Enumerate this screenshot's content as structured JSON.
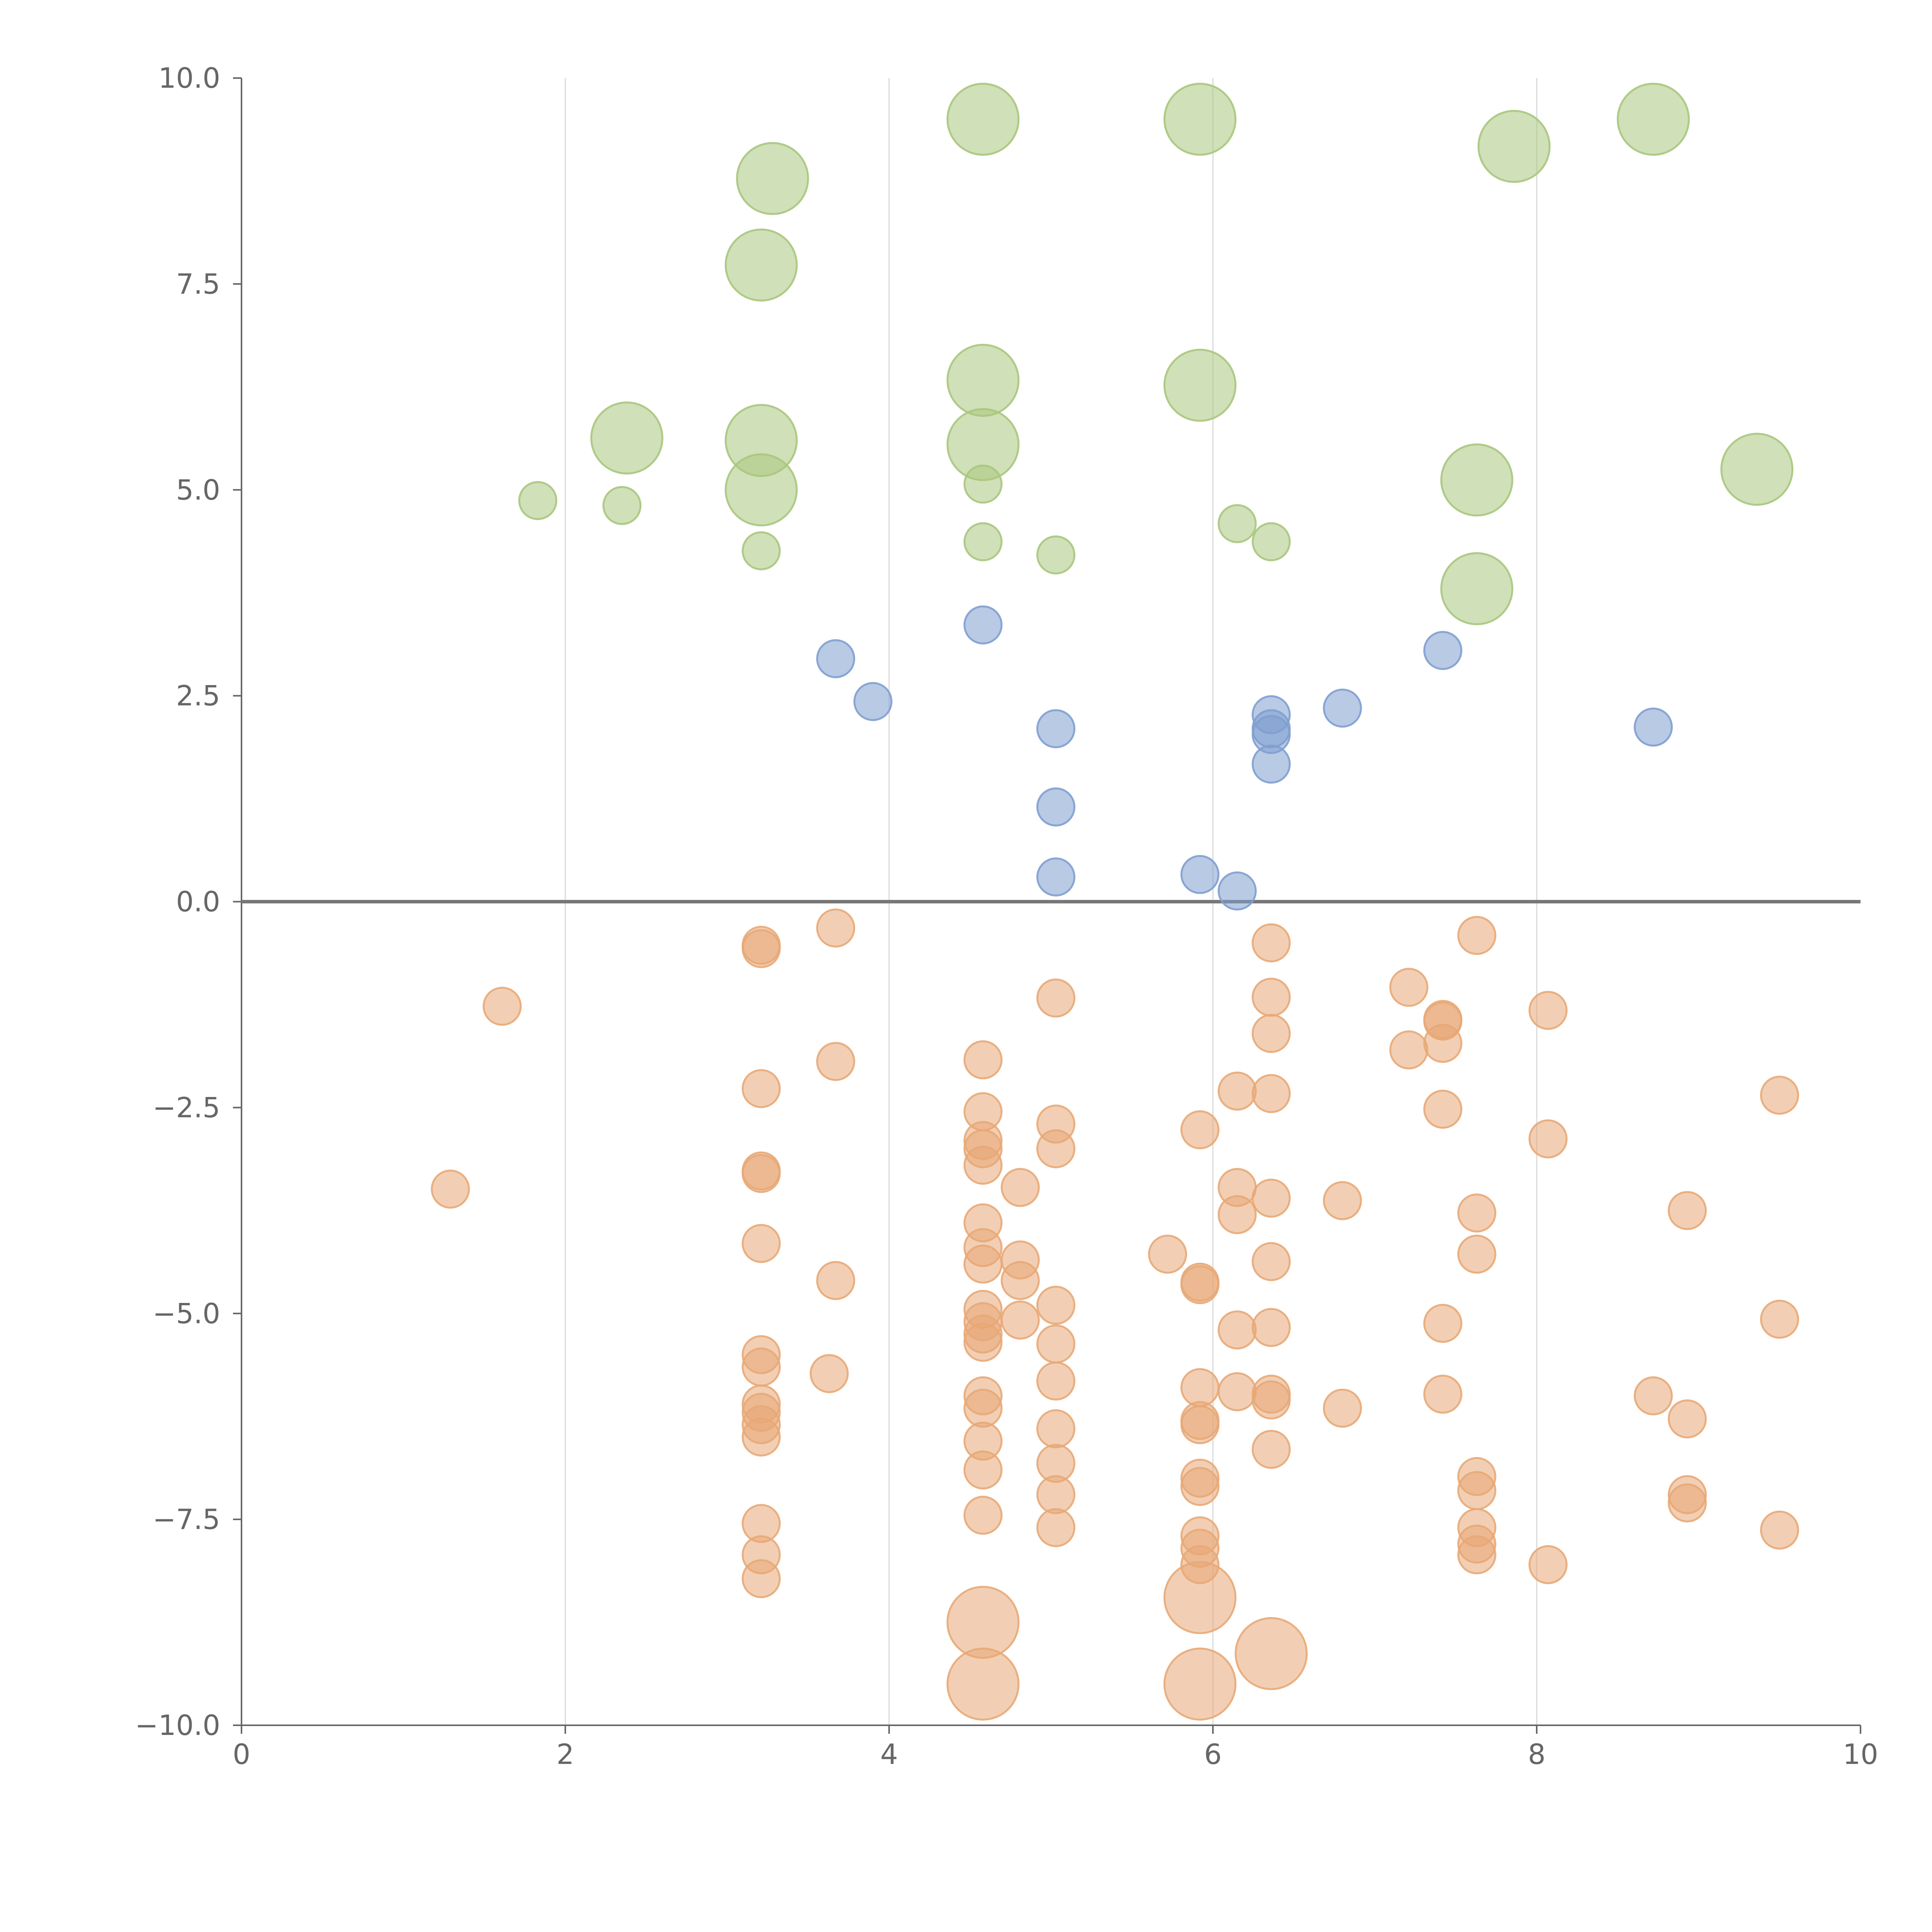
{
  "chart_data": {
    "type": "scatter",
    "title": "",
    "xlabel": "",
    "ylabel": "",
    "xlim": [
      0,
      10
    ],
    "ylim": [
      -10,
      10
    ],
    "x_ticks": [
      "0",
      "2",
      "4",
      "6",
      "8",
      "10"
    ],
    "y_ticks": [
      "10.0",
      "7.5",
      "5.0",
      "2.5",
      "0.0",
      "−2.5",
      "−5.0",
      "−7.5",
      "−10.0"
    ],
    "grid": "vertical",
    "zero_line": true,
    "series": [
      {
        "color": "#a9c77e",
        "points": [
          [
            4.58,
            9.5,
            2
          ],
          [
            5.92,
            9.5,
            2
          ],
          [
            8.72,
            9.5,
            2
          ],
          [
            7.86,
            9.17,
            2
          ],
          [
            3.28,
            8.78,
            2
          ],
          [
            3.21,
            7.73,
            2
          ],
          [
            4.58,
            6.33,
            2
          ],
          [
            5.92,
            6.27,
            2
          ],
          [
            2.38,
            5.63,
            2
          ],
          [
            3.21,
            5.6,
            2
          ],
          [
            4.58,
            5.55,
            2
          ],
          [
            9.36,
            5.25,
            2
          ],
          [
            7.63,
            5.12,
            2
          ],
          [
            3.21,
            5.0,
            2
          ],
          [
            7.63,
            3.8,
            2
          ],
          [
            1.83,
            4.87,
            1
          ],
          [
            2.35,
            4.81,
            1
          ],
          [
            4.58,
            5.07,
            1
          ],
          [
            6.15,
            4.59,
            1
          ],
          [
            6.36,
            4.37,
            1
          ],
          [
            4.58,
            4.37,
            1
          ],
          [
            5.03,
            4.21,
            1
          ],
          [
            3.21,
            4.26,
            1
          ]
        ]
      },
      {
        "color": "#7f9fd0",
        "points": [
          [
            3.67,
            2.95,
            1
          ],
          [
            3.9,
            2.43,
            1
          ],
          [
            4.58,
            3.36,
            1
          ],
          [
            5.03,
            2.1,
            1
          ],
          [
            5.03,
            1.15,
            1
          ],
          [
            5.03,
            0.3,
            1
          ],
          [
            5.92,
            0.33,
            1
          ],
          [
            6.15,
            0.13,
            1
          ],
          [
            6.36,
            2.27,
            1
          ],
          [
            6.36,
            2.1,
            1
          ],
          [
            6.36,
            2.03,
            1
          ],
          [
            6.36,
            1.67,
            1
          ],
          [
            6.8,
            2.35,
            1
          ],
          [
            7.42,
            3.05,
            1
          ],
          [
            8.72,
            2.12,
            1
          ]
        ]
      },
      {
        "color": "#e8a877",
        "points": [
          [
            1.29,
            -3.49,
            1
          ],
          [
            1.61,
            -1.27,
            1
          ],
          [
            3.21,
            -0.53,
            1
          ],
          [
            3.21,
            -0.57,
            1
          ],
          [
            3.21,
            -2.27,
            1
          ],
          [
            3.21,
            -3.27,
            1
          ],
          [
            3.21,
            -3.3,
            1
          ],
          [
            3.21,
            -4.15,
            1
          ],
          [
            3.21,
            -5.5,
            1
          ],
          [
            3.21,
            -5.65,
            1
          ],
          [
            3.21,
            -6.1,
            1
          ],
          [
            3.21,
            -6.2,
            1
          ],
          [
            3.21,
            -6.35,
            1
          ],
          [
            3.21,
            -6.5,
            1
          ],
          [
            3.21,
            -7.55,
            1
          ],
          [
            3.21,
            -7.93,
            1
          ],
          [
            3.21,
            -8.22,
            1
          ],
          [
            3.67,
            -0.32,
            1
          ],
          [
            3.67,
            -1.94,
            1
          ],
          [
            3.67,
            -4.6,
            1
          ],
          [
            3.63,
            -5.73,
            1
          ],
          [
            4.58,
            -1.92,
            1
          ],
          [
            4.58,
            -2.55,
            1
          ],
          [
            4.58,
            -2.9,
            1
          ],
          [
            4.58,
            -3.0,
            1
          ],
          [
            4.58,
            -3.2,
            1
          ],
          [
            4.58,
            -3.9,
            1
          ],
          [
            4.58,
            -4.2,
            1
          ],
          [
            4.58,
            -4.4,
            1
          ],
          [
            4.58,
            -4.95,
            1
          ],
          [
            4.58,
            -5.1,
            1
          ],
          [
            4.58,
            -5.25,
            1
          ],
          [
            4.58,
            -5.35,
            1
          ],
          [
            4.58,
            -6.0,
            1
          ],
          [
            4.58,
            -6.15,
            1
          ],
          [
            4.58,
            -6.55,
            1
          ],
          [
            4.58,
            -6.9,
            1
          ],
          [
            4.58,
            -7.45,
            1
          ],
          [
            4.58,
            -8.75,
            2
          ],
          [
            4.58,
            -9.5,
            2
          ],
          [
            4.81,
            -3.47,
            1
          ],
          [
            4.81,
            -4.35,
            1
          ],
          [
            4.81,
            -4.6,
            1
          ],
          [
            4.81,
            -5.08,
            1
          ],
          [
            5.03,
            -1.17,
            1
          ],
          [
            5.03,
            -2.7,
            1
          ],
          [
            5.03,
            -3.0,
            1
          ],
          [
            5.03,
            -4.9,
            1
          ],
          [
            5.03,
            -5.37,
            1
          ],
          [
            5.03,
            -5.82,
            1
          ],
          [
            5.03,
            -6.4,
            1
          ],
          [
            5.03,
            -6.82,
            1
          ],
          [
            5.03,
            -7.2,
            1
          ],
          [
            5.03,
            -7.6,
            1
          ],
          [
            5.72,
            -4.28,
            1
          ],
          [
            5.92,
            -2.77,
            1
          ],
          [
            5.92,
            -4.62,
            1
          ],
          [
            5.92,
            -4.65,
            1
          ],
          [
            5.92,
            -5.9,
            1
          ],
          [
            5.92,
            -6.3,
            1
          ],
          [
            5.92,
            -6.35,
            1
          ],
          [
            5.92,
            -7.0,
            1
          ],
          [
            5.92,
            -7.1,
            1
          ],
          [
            5.92,
            -7.7,
            1
          ],
          [
            5.92,
            -7.85,
            1
          ],
          [
            5.92,
            -8.05,
            1
          ],
          [
            5.92,
            -8.45,
            2
          ],
          [
            5.92,
            -9.5,
            2
          ],
          [
            6.15,
            -2.3,
            1
          ],
          [
            6.15,
            -3.47,
            1
          ],
          [
            6.15,
            -3.8,
            1
          ],
          [
            6.15,
            -5.2,
            1
          ],
          [
            6.15,
            -5.95,
            1
          ],
          [
            6.36,
            -0.5,
            1
          ],
          [
            6.36,
            -1.16,
            1
          ],
          [
            6.36,
            -1.6,
            1
          ],
          [
            6.36,
            -2.33,
            1
          ],
          [
            6.36,
            -3.6,
            1
          ],
          [
            6.36,
            -4.37,
            1
          ],
          [
            6.36,
            -5.17,
            1
          ],
          [
            6.36,
            -5.98,
            1
          ],
          [
            6.36,
            -6.05,
            1
          ],
          [
            6.36,
            -6.65,
            1
          ],
          [
            6.36,
            -9.13,
            2
          ],
          [
            6.8,
            -3.63,
            1
          ],
          [
            6.8,
            -6.15,
            1
          ],
          [
            7.21,
            -1.04,
            1
          ],
          [
            7.21,
            -1.8,
            1
          ],
          [
            7.42,
            -1.43,
            1
          ],
          [
            7.42,
            -1.45,
            1
          ],
          [
            7.42,
            -1.72,
            1
          ],
          [
            7.42,
            -2.52,
            1
          ],
          [
            7.42,
            -5.12,
            1
          ],
          [
            7.42,
            -5.98,
            1
          ],
          [
            7.63,
            -0.41,
            1
          ],
          [
            7.63,
            -3.78,
            1
          ],
          [
            7.63,
            -4.28,
            1
          ],
          [
            7.63,
            -6.98,
            1
          ],
          [
            7.63,
            -7.15,
            1
          ],
          [
            7.63,
            -7.6,
            1
          ],
          [
            7.63,
            -7.8,
            1
          ],
          [
            7.63,
            -7.93,
            1
          ],
          [
            8.07,
            -1.32,
            1
          ],
          [
            8.07,
            -2.88,
            1
          ],
          [
            8.07,
            -8.05,
            1
          ],
          [
            8.72,
            -6.0,
            1
          ],
          [
            8.93,
            -3.75,
            1
          ],
          [
            8.93,
            -6.28,
            1
          ],
          [
            8.93,
            -7.2,
            1
          ],
          [
            8.93,
            -7.3,
            1
          ],
          [
            9.5,
            -2.35,
            1
          ],
          [
            9.5,
            -5.07,
            1
          ],
          [
            9.5,
            -7.63,
            1
          ]
        ]
      }
    ]
  }
}
